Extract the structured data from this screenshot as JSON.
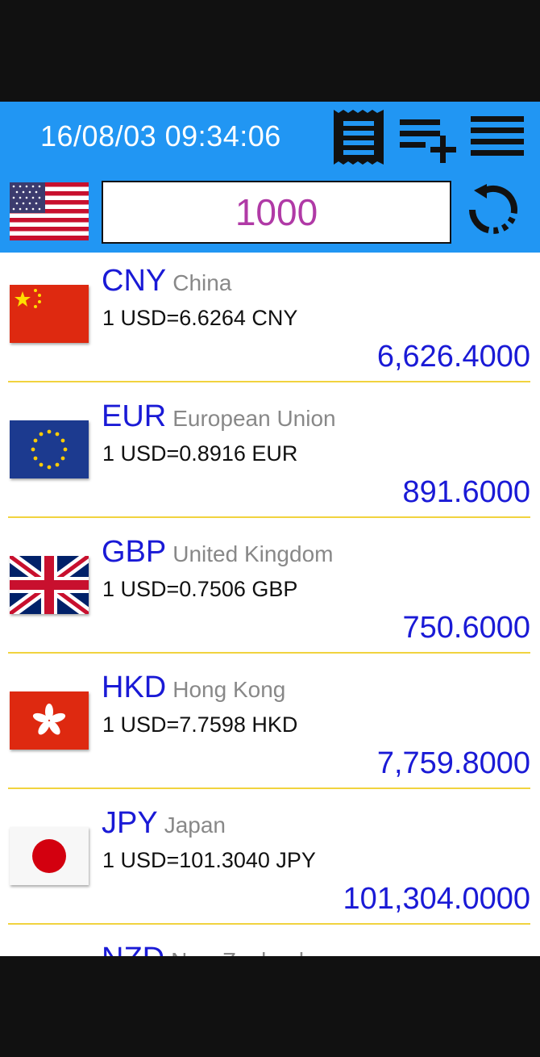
{
  "header": {
    "datetime": "16/08/03 09:34:06",
    "icons": [
      "receipt-icon",
      "playlist-add-icon",
      "menu-list-icon"
    ]
  },
  "base": {
    "flag": "us-flag-icon",
    "amount": "1000",
    "refresh_icon": "refresh-icon"
  },
  "currencies": [
    {
      "code": "CNY",
      "country": "China",
      "rate": "1 USD=6.6264 CNY",
      "converted": "6,626.4000",
      "flag": "cn-flag-icon"
    },
    {
      "code": "EUR",
      "country": "European Union",
      "rate": "1 USD=0.8916 EUR",
      "converted": "891.6000",
      "flag": "eu-flag-icon"
    },
    {
      "code": "GBP",
      "country": "United Kingdom",
      "rate": "1 USD=0.7506 GBP",
      "converted": "750.6000",
      "flag": "gb-flag-icon"
    },
    {
      "code": "HKD",
      "country": "Hong Kong",
      "rate": "1 USD=7.7598 HKD",
      "converted": "7,759.8000",
      "flag": "hk-flag-icon"
    },
    {
      "code": "JPY",
      "country": "Japan",
      "rate": "1 USD=101.3040 JPY",
      "converted": "101,304.0000",
      "flag": "jp-flag-icon"
    },
    {
      "code": "NZD",
      "country": "New Zealand",
      "rate": "",
      "converted": "",
      "flag": "nz-flag-icon"
    }
  ],
  "colors": {
    "toolbar": "#2196f3",
    "code_text": "#1a1ad6",
    "amount_text": "#b03aa6",
    "divider": "#f1d33f"
  }
}
